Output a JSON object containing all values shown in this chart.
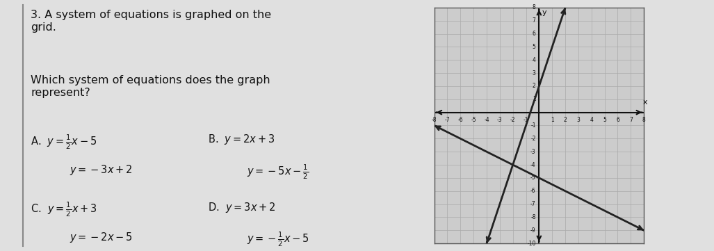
{
  "question_number": "3.",
  "question_text": "A system of equations is graphed on the\ngrid.",
  "prompt": "Which system of equations does the graph\nrepresent?",
  "line1_slope": 3,
  "line1_intercept": 2,
  "line2_slope": -0.5,
  "line2_intercept": -5,
  "xmin": -8,
  "xmax": 8,
  "ymin": -10,
  "ymax": 8,
  "grid_color": "#aaaaaa",
  "line_color": "#222222",
  "axis_color": "#111111",
  "background_left": "#e8e8e8",
  "text_color": "#111111",
  "graph_bg": "#cccccc"
}
